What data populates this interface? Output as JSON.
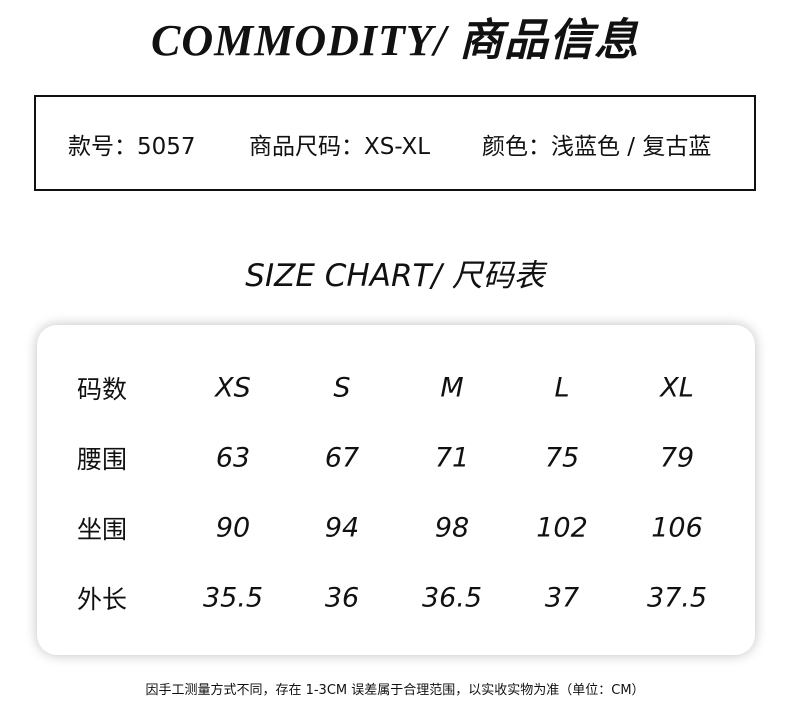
{
  "title": "COMMODITY/ 商品信息",
  "info": {
    "style_no": "款号：5057",
    "size_range": "商品尺码：XS-XL",
    "color": "颜色：浅蓝色 / 复古蓝"
  },
  "size_chart_title": "SIZE CHART/ 尺码表",
  "table": {
    "header": {
      "label": "码数",
      "sizes": [
        "XS",
        "S",
        "M",
        "L",
        "XL"
      ]
    },
    "rows": [
      {
        "label": "腰围",
        "values": [
          "63",
          "67",
          "71",
          "75",
          "79"
        ]
      },
      {
        "label": "坐围",
        "values": [
          "90",
          "94",
          "98",
          "102",
          "106"
        ]
      },
      {
        "label": "外长",
        "values": [
          "35.5",
          "36",
          "36.5",
          "37",
          "37.5"
        ]
      }
    ]
  },
  "footnote": "因手工测量方式不同，存在 1-3CM 误差属于合理范围，以实收实物为准（单位：CM）"
}
